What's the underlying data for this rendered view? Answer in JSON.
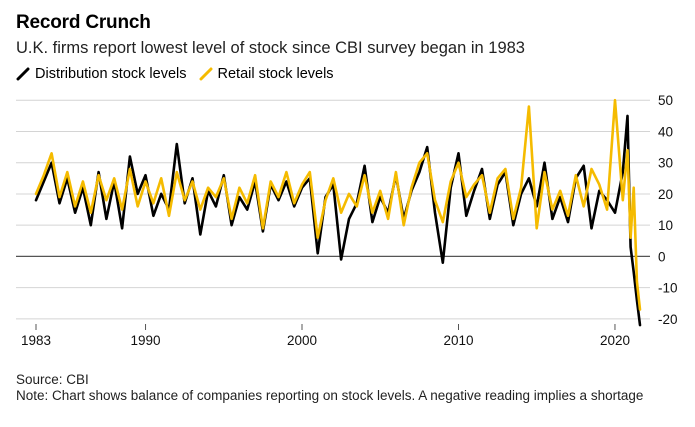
{
  "title": "Record Crunch",
  "subtitle": "U.K. firms report lowest level of stock since CBI survey began in 1983",
  "legend": [
    {
      "label": "Distribution stock levels",
      "color": "#000000"
    },
    {
      "label": "Retail stock levels",
      "color": "#f5bb00"
    }
  ],
  "footer": {
    "source": "Source: CBI",
    "note": "Note: Chart shows balance of companies reporting on stock levels. A negative reading implies a shortage"
  },
  "chart_data": {
    "type": "line",
    "xlim": [
      1983,
      2021.6
    ],
    "ylim": [
      -21,
      52
    ],
    "x_ticks": [
      1983,
      1990,
      2000,
      2010,
      2020
    ],
    "y_ticks": [
      50,
      40,
      30,
      20,
      10,
      0,
      -10,
      -20
    ],
    "grid": true,
    "legend_position": "top-left",
    "series": [
      {
        "name": "Distribution stock levels",
        "color": "#000000",
        "x": [
          1983.0,
          1983.5,
          1984.0,
          1984.5,
          1985.0,
          1985.5,
          1986.0,
          1986.5,
          1987.0,
          1987.5,
          1988.0,
          1988.5,
          1989.0,
          1989.5,
          1990.0,
          1990.5,
          1991.0,
          1991.5,
          1992.0,
          1992.5,
          1993.0,
          1993.5,
          1994.0,
          1994.5,
          1995.0,
          1995.5,
          1996.0,
          1996.5,
          1997.0,
          1997.5,
          1998.0,
          1998.5,
          1999.0,
          1999.5,
          2000.0,
          2000.5,
          2001.0,
          2001.5,
          2002.0,
          2002.5,
          2003.0,
          2003.5,
          2004.0,
          2004.5,
          2005.0,
          2005.5,
          2006.0,
          2006.5,
          2007.0,
          2007.5,
          2008.0,
          2008.5,
          2009.0,
          2009.5,
          2010.0,
          2010.5,
          2011.0,
          2011.5,
          2012.0,
          2012.5,
          2013.0,
          2013.5,
          2014.0,
          2014.5,
          2015.0,
          2015.5,
          2016.0,
          2016.5,
          2017.0,
          2017.5,
          2018.0,
          2018.5,
          2019.0,
          2019.5,
          2020.0,
          2020.5,
          2020.8,
          2021.0,
          2021.2,
          2021.4,
          2021.6
        ],
        "values": [
          18,
          24,
          30,
          17,
          25,
          14,
          22,
          10,
          27,
          12,
          24,
          9,
          32,
          20,
          26,
          13,
          20,
          15,
          36,
          17,
          25,
          7,
          21,
          16,
          26,
          10,
          19,
          15,
          24,
          8,
          23,
          18,
          24,
          16,
          22,
          25,
          1,
          19,
          23,
          -1,
          12,
          17,
          29,
          11,
          19,
          14,
          26,
          12,
          21,
          27,
          35,
          14,
          -2,
          22,
          33,
          13,
          21,
          28,
          12,
          23,
          27,
          10,
          20,
          25,
          16,
          30,
          12,
          19,
          11,
          25,
          29,
          9,
          21,
          18,
          14,
          27,
          45,
          3,
          -5,
          -14,
          -22
        ]
      },
      {
        "name": "Retail stock levels",
        "color": "#f5bb00",
        "x": [
          1983.0,
          1983.5,
          1984.0,
          1984.5,
          1985.0,
          1985.5,
          1986.0,
          1986.5,
          1987.0,
          1987.5,
          1988.0,
          1988.5,
          1989.0,
          1989.5,
          1990.0,
          1990.5,
          1991.0,
          1991.5,
          1992.0,
          1992.5,
          1993.0,
          1993.5,
          1994.0,
          1994.5,
          1995.0,
          1995.5,
          1996.0,
          1996.5,
          1997.0,
          1997.5,
          1998.0,
          1998.5,
          1999.0,
          1999.5,
          2000.0,
          2000.5,
          2001.0,
          2001.5,
          2002.0,
          2002.5,
          2003.0,
          2003.5,
          2004.0,
          2004.5,
          2005.0,
          2005.5,
          2006.0,
          2006.5,
          2007.0,
          2007.5,
          2008.0,
          2008.5,
          2009.0,
          2009.5,
          2010.0,
          2010.5,
          2011.0,
          2011.5,
          2012.0,
          2012.5,
          2013.0,
          2013.5,
          2014.0,
          2014.5,
          2015.0,
          2015.5,
          2016.0,
          2016.5,
          2017.0,
          2017.5,
          2018.0,
          2018.5,
          2019.0,
          2019.5,
          2020.0,
          2020.5,
          2020.8,
          2021.0,
          2021.2,
          2021.4,
          2021.6
        ],
        "values": [
          20,
          26,
          33,
          19,
          27,
          16,
          24,
          14,
          26,
          18,
          25,
          15,
          28,
          16,
          24,
          17,
          25,
          13,
          27,
          18,
          24,
          15,
          22,
          19,
          25,
          12,
          22,
          17,
          26,
          9,
          24,
          19,
          27,
          17,
          23,
          27,
          6,
          18,
          25,
          14,
          20,
          16,
          26,
          14,
          21,
          12,
          27,
          10,
          22,
          30,
          33,
          18,
          11,
          24,
          30,
          19,
          23,
          26,
          14,
          25,
          28,
          12,
          22,
          48,
          9,
          27,
          15,
          21,
          13,
          26,
          16,
          28,
          23,
          15,
          50,
          18,
          34,
          6,
          22,
          -8,
          -17
        ]
      }
    ]
  }
}
